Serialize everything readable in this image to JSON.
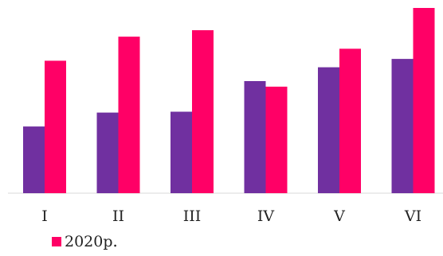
{
  "chart_data": {
    "type": "bar",
    "categories": [
      "I",
      "II",
      "III",
      "IV",
      "V",
      "VI"
    ],
    "series": [
      {
        "color": "#7030a0",
        "values": [
          36,
          43.5,
          44,
          60.5,
          68,
          72.5
        ]
      },
      {
        "name": "2020р.",
        "color": "#ff0066",
        "values": [
          71.5,
          84.5,
          88,
          57.5,
          78,
          100
        ]
      }
    ],
    "ylim": [
      0,
      100
    ],
    "grid": false,
    "legend_position": "bottom-left",
    "legend_marker_text": "."
  }
}
